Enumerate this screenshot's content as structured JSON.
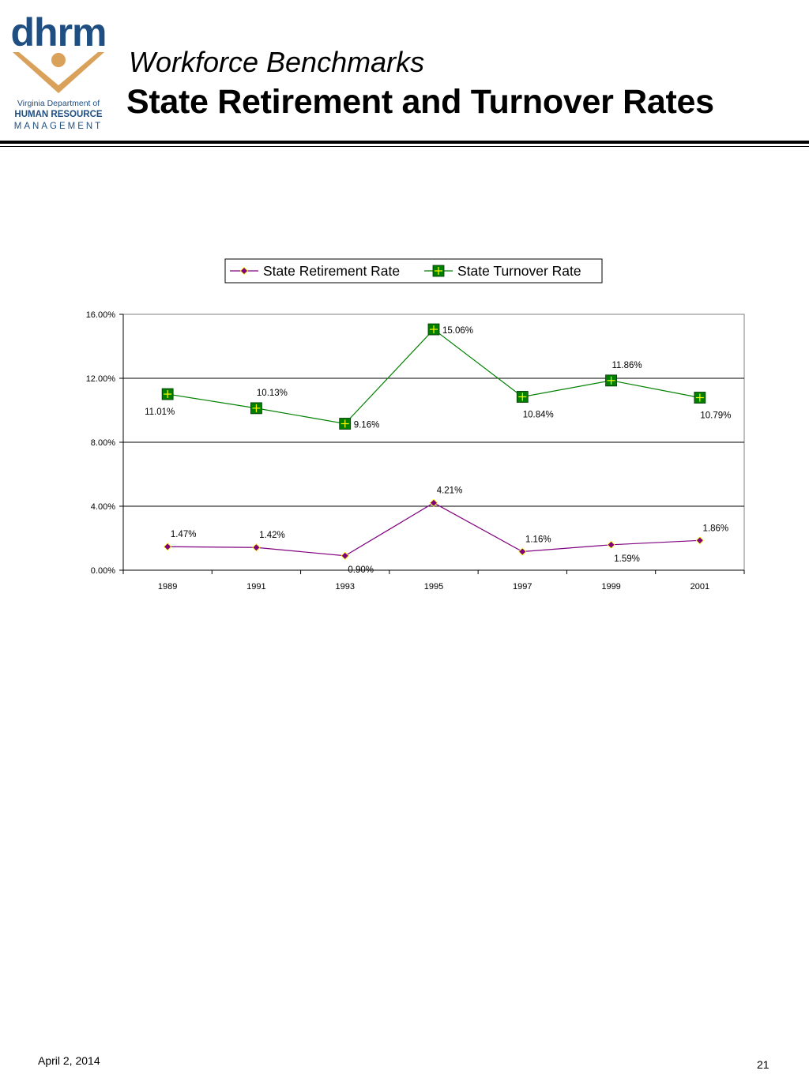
{
  "logo": {
    "wordmark": "dhrm",
    "line1": "Virginia Department of",
    "line2": "HUMAN RESOURCE",
    "line3": "MANAGEMENT"
  },
  "header": {
    "subtitle": "Workforce Benchmarks",
    "title": "State Retirement and Turnover Rates"
  },
  "footer": {
    "date": "April 2, 2014",
    "page_number": "21"
  },
  "colors": {
    "retirement_line": "#800080",
    "retirement_marker": "#800080",
    "retirement_marker_edge": "#ffff00",
    "turnover_line": "#008000",
    "turnover_marker": "#008000",
    "turnover_marker_plus": "#ffff00",
    "gridline": "#000000",
    "logo_blue": "#1f4f82",
    "logo_gold": "#d9a15a"
  },
  "chart_data": {
    "type": "line",
    "categories": [
      "1989",
      "1991",
      "1993",
      "1995",
      "1997",
      "1999",
      "2001"
    ],
    "series": [
      {
        "name": "State Retirement Rate",
        "values": [
          1.47,
          1.42,
          0.9,
          4.21,
          1.16,
          1.59,
          1.86
        ],
        "labels": [
          "1.47%",
          "1.42%",
          "0.90%",
          "4.21%",
          "1.16%",
          "1.59%",
          "1.86%"
        ],
        "label_positions": [
          "above",
          "above",
          "below",
          "above",
          "above",
          "below",
          "above"
        ]
      },
      {
        "name": "State Turnover Rate",
        "values": [
          11.01,
          10.13,
          9.16,
          15.06,
          10.84,
          11.86,
          10.79
        ],
        "labels": [
          "11.01%",
          "10.13%",
          "9.16%",
          "15.06%",
          "10.84%",
          "11.86%",
          "10.79%"
        ],
        "label_positions": [
          "below",
          "above",
          "right",
          "right",
          "below",
          "above",
          "below"
        ]
      }
    ],
    "yticks": [
      "0.00%",
      "4.00%",
      "8.00%",
      "12.00%",
      "16.00%"
    ],
    "ylim": [
      0,
      16
    ],
    "ytick_values": [
      0,
      4,
      8,
      12,
      16
    ],
    "legend_position": "top",
    "grid": true,
    "title": "",
    "xlabel": "",
    "ylabel": ""
  }
}
